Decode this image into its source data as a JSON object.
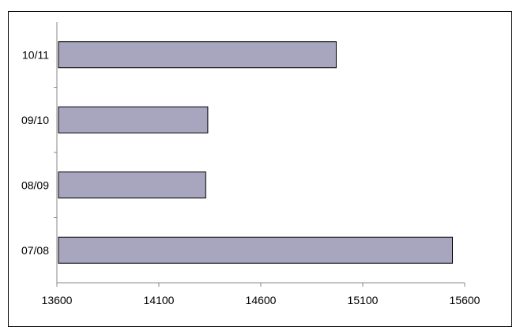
{
  "chart_data": {
    "type": "bar",
    "orientation": "horizontal",
    "categories": [
      "10/11",
      "09/10",
      "08/09",
      "07/08"
    ],
    "values": [
      14970,
      14340,
      14330,
      15540
    ],
    "title": "",
    "xlabel": "",
    "ylabel": "",
    "xlim": [
      13600,
      15600
    ],
    "xticks": [
      13600,
      14100,
      14600,
      15100,
      15600
    ],
    "xtick_labels": [
      "13600",
      "14100",
      "14600",
      "15100",
      "15600"
    ],
    "grid": false,
    "legend": "none",
    "bar_color": "#a8a6be"
  }
}
